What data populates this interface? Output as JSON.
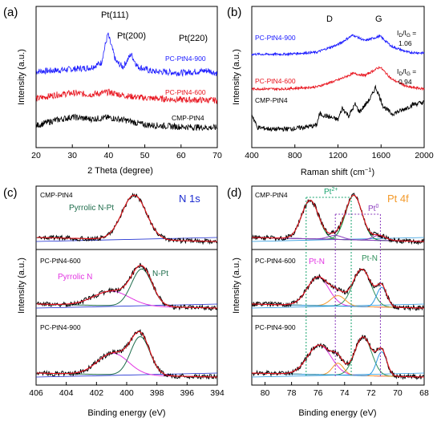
{
  "colors": {
    "black": "#000000",
    "blue": "#1a1aff",
    "red": "#e8141e",
    "green": "#0b8f3c",
    "dkgreen": "#1c6b4a",
    "magenta": "#e235e2",
    "navy": "#1a2bd0",
    "orange": "#f39a2b",
    "lightblue": "#2a9adf",
    "purple": "#8a3bbd",
    "olive": "#2f8f5a",
    "dashgreen": "#17a36e"
  },
  "chart_data": [
    {
      "panel": "(a)",
      "type": "line",
      "xlabel": "2 Theta (degree)",
      "ylabel": "Intensity (a.u.)",
      "xlim": [
        20,
        70
      ],
      "xticks": [
        "20",
        "30",
        "40",
        "50",
        "60",
        "70"
      ],
      "peak_labels": [
        "Pt(111)",
        "Pt(200)",
        "Pt(220)"
      ],
      "series": [
        {
          "name": "PC-PtN4-900",
          "color": "blue",
          "offset": 2.0,
          "x": [
            20,
            25,
            30,
            35,
            38,
            39.8,
            42,
            44,
            46.2,
            48,
            52,
            60,
            67.5,
            70
          ],
          "y": [
            0.25,
            0.28,
            0.33,
            0.38,
            0.55,
            1.55,
            0.6,
            0.4,
            0.85,
            0.42,
            0.25,
            0.2,
            0.28,
            0.18
          ]
        },
        {
          "name": "PC-PtN4-600",
          "color": "red",
          "offset": 1.15,
          "x": [
            20,
            25,
            30,
            35,
            40,
            45,
            50,
            60,
            70
          ],
          "y": [
            0.15,
            0.28,
            0.35,
            0.3,
            0.38,
            0.25,
            0.18,
            0.12,
            0.1
          ]
        },
        {
          "name": "CMP-PtN4",
          "color": "black",
          "offset": 0.25,
          "x": [
            20,
            25,
            30,
            35,
            40,
            45,
            50,
            60,
            70
          ],
          "y": [
            0.12,
            0.3,
            0.42,
            0.35,
            0.4,
            0.3,
            0.15,
            0.08,
            0.05
          ]
        }
      ]
    },
    {
      "panel": "(b)",
      "type": "line",
      "xlabel": "Raman shift (cm",
      "xlabel_sup": "−1",
      "xlabel_end": ")",
      "ylabel": "Intensity (a.u.)",
      "xlim": [
        400,
        2000
      ],
      "xticks": [
        "400",
        "800",
        "1200",
        "1600",
        "2000"
      ],
      "band_labels": [
        "D",
        "G"
      ],
      "ratio_annotations": [
        {
          "prefix": "I",
          "sub1": "D",
          "mid": "/I",
          "sub2": "G",
          "suffix": " =",
          "value": "1.06"
        },
        {
          "prefix": "I",
          "sub1": "D",
          "mid": "/I",
          "sub2": "G",
          "suffix": " =",
          "value": "0.94"
        }
      ],
      "series": [
        {
          "name": "PC-PtN4-900",
          "color": "blue",
          "offset": 2.0,
          "x": [
            400,
            700,
            1000,
            1200,
            1340,
            1450,
            1590,
            1700,
            1850,
            2000
          ],
          "y": [
            0.05,
            0.05,
            0.1,
            0.3,
            0.55,
            0.4,
            0.52,
            0.25,
            0.1,
            0.08
          ]
        },
        {
          "name": "PC-PtN4-600",
          "color": "red",
          "offset": 1.1,
          "x": [
            400,
            700,
            1000,
            1200,
            1340,
            1450,
            1590,
            1700,
            1850,
            2000
          ],
          "y": [
            0.05,
            0.05,
            0.1,
            0.28,
            0.45,
            0.4,
            0.62,
            0.3,
            0.1,
            0.05
          ]
        },
        {
          "name": "CMP-PtN4",
          "color": "black",
          "offset": 0.0,
          "x": [
            400,
            450,
            600,
            800,
            1000,
            1030,
            1200,
            1240,
            1300,
            1360,
            1400,
            1500,
            1550,
            1620,
            1700,
            1800,
            1900,
            2000
          ],
          "y": [
            0.5,
            0.15,
            0.1,
            0.12,
            0.2,
            0.5,
            0.35,
            0.65,
            0.45,
            0.75,
            0.55,
            0.9,
            1.2,
            0.7,
            0.5,
            0.6,
            0.75,
            0.8
          ]
        }
      ]
    },
    {
      "panel": "(c)",
      "type": "line",
      "title": "N 1s",
      "xlabel": "Binding energy (eV)",
      "ylabel": "Intensity (a.u.)",
      "xlim": [
        406,
        394
      ],
      "xticks": [
        "406",
        "404",
        "402",
        "400",
        "398",
        "396",
        "394"
      ],
      "subpanels": [
        {
          "name": "CMP-PtN4",
          "annotations": [
            "Pyrrolic N-Pt"
          ],
          "peaks": [
            {
              "name": "Pyrrolic N-Pt",
              "center": 399.5,
              "fwhm": 1.9,
              "height": 0.9,
              "color": "green"
            }
          ]
        },
        {
          "name": "PC-PtN4-600",
          "annotations": [
            "Pyrrolic N",
            "N-Pt"
          ],
          "peaks": [
            {
              "name": "Pyrrolic N",
              "center": 401.0,
              "fwhm": 2.8,
              "height": 0.28,
              "color": "magenta"
            },
            {
              "name": "N-Pt",
              "center": 399.0,
              "fwhm": 1.6,
              "height": 0.72,
              "color": "dkgreen"
            }
          ]
        },
        {
          "name": "PC-PtN4-900",
          "annotations": [],
          "peaks": [
            {
              "name": "Pyrrolic N",
              "center": 400.9,
              "fwhm": 2.4,
              "height": 0.4,
              "color": "magenta"
            },
            {
              "name": "N-Pt",
              "center": 399.1,
              "fwhm": 1.5,
              "height": 0.72,
              "color": "dkgreen"
            }
          ]
        }
      ]
    },
    {
      "panel": "(d)",
      "type": "line",
      "title": "Pt 4f",
      "xlabel": "Binding energy (eV)",
      "ylabel": "Intensity (a.u.)",
      "xlim": [
        81,
        68
      ],
      "xticks": [
        "80",
        "78",
        "76",
        "74",
        "72",
        "70",
        "68"
      ],
      "species_labels": [
        "Pt",
        "2+",
        "Pt",
        "0"
      ],
      "subpanels": [
        {
          "name": "CMP-PtN4",
          "annotations": [],
          "peaks": [
            {
              "name": "Pt2+ 4f5/2",
              "center": 76.6,
              "fwhm": 1.5,
              "height": 0.78,
              "color": "green"
            },
            {
              "name": "Pt2+ 4f7/2",
              "center": 73.3,
              "fwhm": 1.45,
              "height": 0.9,
              "color": "green"
            },
            {
              "name": "Pt0 4f5/2",
              "center": 74.7,
              "fwhm": 1.3,
              "height": 0.08,
              "color": "purple"
            },
            {
              "name": "Pt0 4f7/2",
              "center": 71.4,
              "fwhm": 1.2,
              "height": 0.1,
              "color": "purple"
            }
          ]
        },
        {
          "name": "PC-PtN4-600",
          "annotations": [
            "Pt-N",
            "Pt-N"
          ],
          "peaks": [
            {
              "name": "Pt-N 4f5/2",
              "center": 76.0,
              "fwhm": 1.9,
              "height": 0.55,
              "color": "magenta"
            },
            {
              "name": "Pt-N 4f7/2",
              "center": 72.7,
              "fwhm": 1.6,
              "height": 0.72,
              "color": "olive"
            },
            {
              "name": "Pt0 4f5/2",
              "center": 74.5,
              "fwhm": 1.3,
              "height": 0.2,
              "color": "orange"
            },
            {
              "name": "Pt0 4f7/2",
              "center": 71.2,
              "fwhm": 0.9,
              "height": 0.38,
              "color": "lightblue"
            }
          ]
        },
        {
          "name": "PC-PtN4-900",
          "annotations": [],
          "peaks": [
            {
              "name": "Pt-N 4f5/2",
              "center": 75.9,
              "fwhm": 2.1,
              "height": 0.55,
              "color": "magenta"
            },
            {
              "name": "Pt-N 4f7/2",
              "center": 72.6,
              "fwhm": 1.5,
              "height": 0.72,
              "color": "olive"
            },
            {
              "name": "Pt0 4f5/2",
              "center": 74.5,
              "fwhm": 1.0,
              "height": 0.22,
              "color": "orange"
            },
            {
              "name": "Pt0 4f7/2",
              "center": 71.2,
              "fwhm": 0.9,
              "height": 0.45,
              "color": "lightblue"
            }
          ]
        }
      ]
    }
  ]
}
